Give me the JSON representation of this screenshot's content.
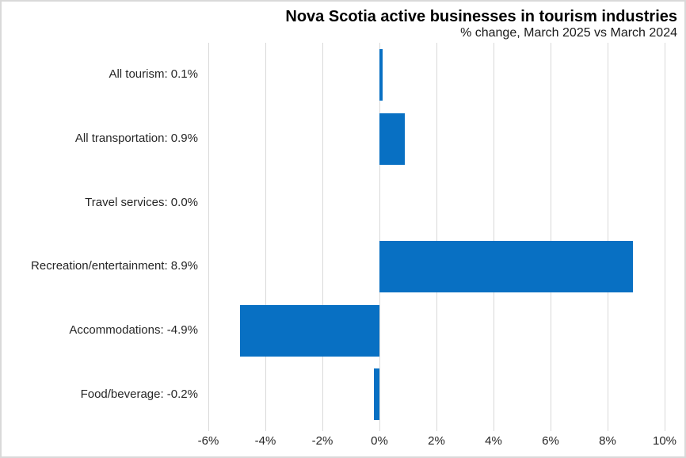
{
  "chart": {
    "title": "Nova Scotia active businesses in tourism industries",
    "subtitle": "% change, March 2025 vs March 2024"
  },
  "chart_data": {
    "type": "bar",
    "orientation": "horizontal",
    "title": "Nova Scotia active businesses in tourism industries",
    "subtitle": "% change, March 2025 vs March 2024",
    "categories": [
      "All tourism",
      "All transportation",
      "Travel services",
      "Recreation/entertainment",
      "Accommodations",
      "Food/beverage"
    ],
    "values": [
      0.1,
      0.9,
      0.0,
      8.9,
      -4.9,
      -0.2
    ],
    "displayed_category_labels": [
      "All tourism: 0.1%",
      "All transportation: 0.9%",
      "Travel services: 0.0%",
      "Recreation/entertainment: 8.9%",
      "Accommodations: -4.9%",
      "Food/beverage: -0.2%"
    ],
    "xlabel": "",
    "ylabel": "",
    "xlim": [
      -6,
      10
    ],
    "x_tick_values": [
      -6,
      -4,
      -2,
      0,
      2,
      4,
      6,
      8,
      10
    ],
    "x_tick_labels": [
      "-6%",
      "-4%",
      "-2%",
      "0%",
      "2%",
      "4%",
      "6%",
      "8%",
      "10%"
    ],
    "grid": "vertical",
    "legend": "none",
    "colors": {
      "bar": "#0870c3",
      "gridline": "#d9d9d9",
      "axis_text": "#262626",
      "title_text": "#000000",
      "border": "#d9d9d9",
      "background": "#ffffff"
    }
  }
}
